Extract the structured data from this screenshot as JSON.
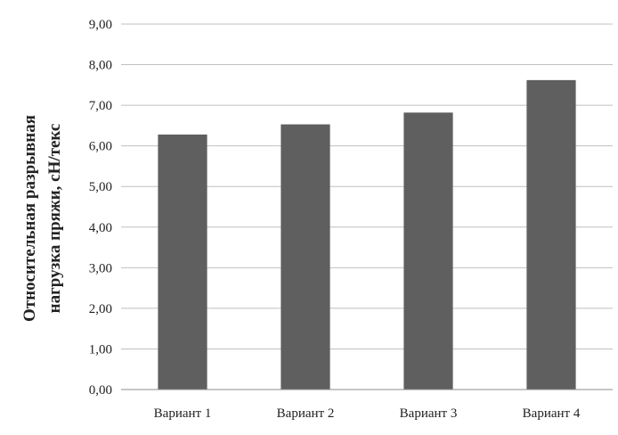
{
  "chart_data": {
    "type": "bar",
    "title": "",
    "xlabel": "",
    "ylabel": [
      "Относительная разрывная",
      "нагрузка пряжи, сН/текс"
    ],
    "categories": [
      "Вариант 1",
      "Вариант 2",
      "Вариант 3",
      "Вариант 4"
    ],
    "series": [
      {
        "values": [
          6.28,
          6.53,
          6.82,
          7.62
        ]
      }
    ],
    "ylim": [
      0,
      9
    ],
    "yticks": [
      "0,00",
      "1,00",
      "2,00",
      "3,00",
      "4,00",
      "5,00",
      "6,00",
      "7,00",
      "8,00",
      "9,00"
    ],
    "grid": true,
    "legend": "none",
    "bar_color": "#5f5f5f",
    "grid_color": "#bfbfbf",
    "axis_color": "#8c8c8c"
  }
}
